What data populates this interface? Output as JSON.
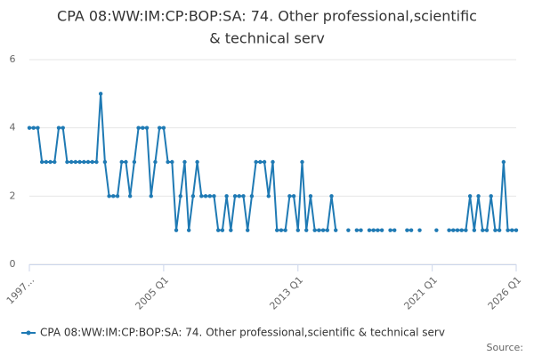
{
  "chart_data": {
    "type": "line",
    "title": [
      "CPA 08:WW:IM:CP:BOP:SA: 74. Other professional,scientific",
      "& technical serv"
    ],
    "categories": [
      "1997...",
      null,
      null,
      null,
      null,
      null,
      null,
      null,
      null,
      null,
      null,
      null,
      null,
      null,
      null,
      null,
      null,
      null,
      null,
      null,
      null,
      null,
      null,
      null,
      null,
      null,
      null,
      null,
      null,
      null,
      null,
      null,
      "2005 Q1",
      null,
      null,
      null,
      null,
      null,
      null,
      null,
      null,
      null,
      null,
      null,
      null,
      null,
      null,
      null,
      null,
      null,
      null,
      null,
      null,
      null,
      null,
      null,
      null,
      null,
      null,
      null,
      null,
      null,
      null,
      null,
      "2013 Q1",
      null,
      null,
      null,
      null,
      null,
      null,
      null,
      null,
      null,
      null,
      null,
      null,
      null,
      null,
      null,
      null,
      null,
      null,
      null,
      null,
      null,
      null,
      null,
      null,
      null,
      null,
      null,
      null,
      null,
      null,
      null,
      "2021 Q1",
      null,
      null,
      null,
      null,
      null,
      null,
      null,
      null,
      null,
      null,
      null,
      null,
      null,
      null,
      null,
      null,
      null,
      null,
      null,
      "2026 Q1"
    ],
    "series": [
      {
        "name": "CPA 08:WW:IM:CP:BOP:SA: 74. Other professional,scientific & technical serv",
        "color": "#1f7ab4",
        "values": [
          4,
          4,
          4,
          3,
          3,
          3,
          3,
          4,
          4,
          3,
          3,
          3,
          3,
          3,
          3,
          3,
          3,
          5,
          3,
          2,
          2,
          2,
          3,
          3,
          2,
          3,
          4,
          4,
          4,
          2,
          3,
          4,
          4,
          3,
          3,
          1,
          2,
          3,
          1,
          2,
          3,
          2,
          2,
          2,
          2,
          1,
          1,
          2,
          1,
          2,
          2,
          2,
          1,
          2,
          3,
          3,
          3,
          2,
          3,
          1,
          1,
          1,
          2,
          2,
          1,
          3,
          1,
          2,
          1,
          1,
          1,
          1,
          2,
          1,
          null,
          null,
          1,
          null,
          1,
          1,
          null,
          1,
          1,
          1,
          1,
          null,
          1,
          1,
          null,
          null,
          1,
          1,
          null,
          1,
          null,
          null,
          null,
          1,
          null,
          null,
          1,
          1,
          1,
          1,
          1,
          2,
          1,
          2,
          1,
          1,
          2,
          1,
          1,
          3,
          1,
          1,
          1
        ]
      }
    ],
    "ylim": [
      0,
      6
    ],
    "yticks": [
      0,
      2,
      4,
      6
    ],
    "grid": true,
    "source": "Source:"
  }
}
